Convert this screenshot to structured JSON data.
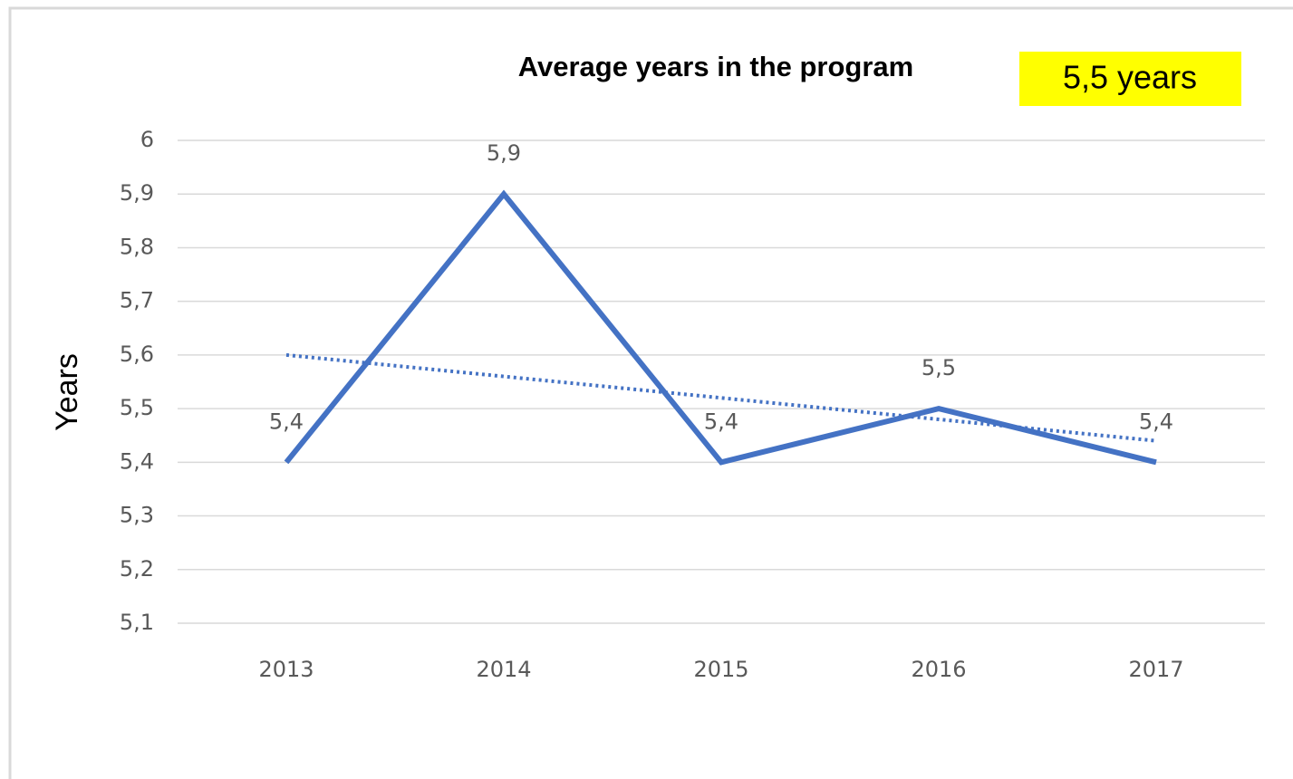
{
  "chart_data": {
    "type": "line",
    "title": "Average years in the program",
    "annotation": "5,5 years",
    "annotation_background": "#ffff00",
    "y_label": "Years",
    "categories": [
      "2013",
      "2014",
      "2015",
      "2016",
      "2017"
    ],
    "series": [
      {
        "color": "#4472c4",
        "values": [
          5.4,
          5.9,
          5.4,
          5.5,
          5.4
        ],
        "value_labels": [
          "5,4",
          "5,9",
          "5,4",
          "5,5",
          "5,4"
        ]
      }
    ],
    "trendline": {
      "color": "#4472c4",
      "style": "dotted",
      "values": [
        5.6,
        5.56,
        5.52,
        5.48,
        5.44
      ]
    },
    "ylim": [
      5.1,
      6
    ],
    "yticks": [
      {
        "value": 5.1,
        "label": "5,1"
      },
      {
        "value": 5.2,
        "label": "5,2"
      },
      {
        "value": 5.3,
        "label": "5,3"
      },
      {
        "value": 5.4,
        "label": "5,4"
      },
      {
        "value": 5.5,
        "label": "5,5"
      },
      {
        "value": 5.6,
        "label": "5,6"
      },
      {
        "value": 5.7,
        "label": "5,7"
      },
      {
        "value": 5.8,
        "label": "5,8"
      },
      {
        "value": 5.9,
        "label": "5,9"
      },
      6
    ],
    "grid": true
  }
}
